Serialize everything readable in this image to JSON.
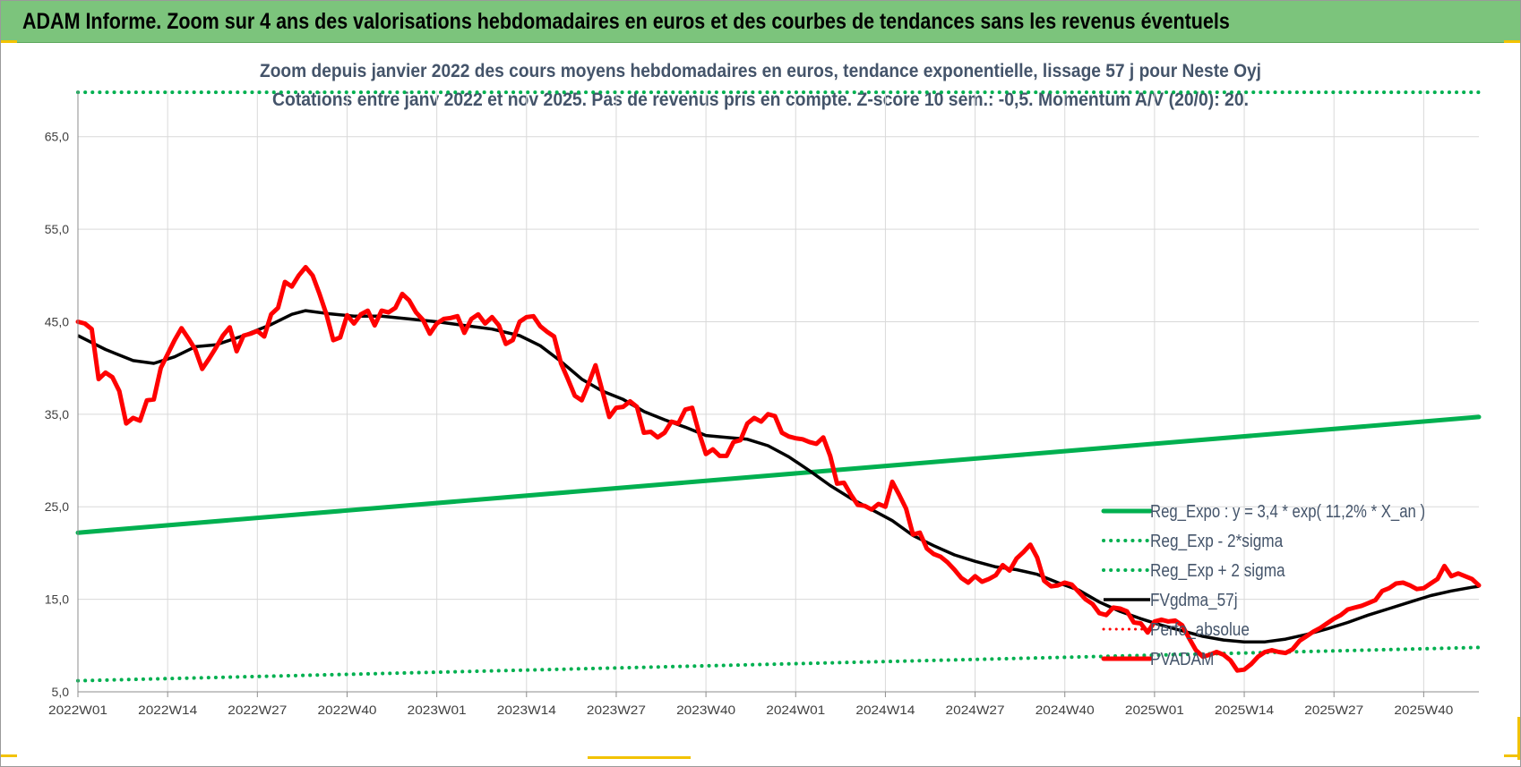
{
  "banner": {
    "title": "ADAM Informe. Zoom sur 4 ans des valorisations hebdomadaires en euros et des courbes de tendances sans les revenus éventuels"
  },
  "colors": {
    "banner_bg": "#7cc47c",
    "trend_green": "#00b050",
    "price_red": "#ff0000",
    "smooth_black": "#000000",
    "grid": "#d9d9d9",
    "axis_text": "#404040",
    "title_text": "#44546a"
  },
  "chart_data": {
    "type": "line",
    "title_line1": "Zoom depuis janvier 2022 des cours moyens hebdomadaires en euros, tendance exponentielle, lissage 57 j pour Neste Oyj",
    "title_line2": "Cotations entre janv 2022 et nov 2025. Pas de revenus pris en compte. Z-score 10 sem.: -0,5. Momentum A/V (20/0): 20.",
    "ylim": [
      5,
      70
    ],
    "y_ticks": [
      5,
      15,
      25,
      35,
      45,
      55,
      65
    ],
    "y_tick_labels": [
      "5,0",
      "15,0",
      "25,0",
      "35,0",
      "45,0",
      "55,0",
      "65,0"
    ],
    "x_count": 204,
    "x_ticks": [
      {
        "i": 0,
        "label": "2022W01"
      },
      {
        "i": 13,
        "label": "2022W14"
      },
      {
        "i": 26,
        "label": "2022W27"
      },
      {
        "i": 39,
        "label": "2022W40"
      },
      {
        "i": 52,
        "label": "2023W01"
      },
      {
        "i": 65,
        "label": "2023W14"
      },
      {
        "i": 78,
        "label": "2023W27"
      },
      {
        "i": 91,
        "label": "2023W40"
      },
      {
        "i": 104,
        "label": "2024W01"
      },
      {
        "i": 117,
        "label": "2024W14"
      },
      {
        "i": 130,
        "label": "2024W27"
      },
      {
        "i": 143,
        "label": "2024W40"
      },
      {
        "i": 156,
        "label": "2025W01"
      },
      {
        "i": 169,
        "label": "2025W14"
      },
      {
        "i": 182,
        "label": "2025W27"
      },
      {
        "i": 195,
        "label": "2025W40"
      }
    ],
    "series": [
      {
        "name": "Reg_Expo : y = 3,4 * exp( 11,2% * X_an )",
        "style": "solid-green",
        "points": [
          [
            0,
            22.2
          ],
          [
            203,
            34.7
          ]
        ]
      },
      {
        "name": "Reg_Exp - 2*sigma",
        "style": "dotted-green",
        "points": [
          [
            0,
            6.2
          ],
          [
            203,
            9.8
          ]
        ]
      },
      {
        "name": "Reg_Exp + 2 sigma",
        "style": "dotted-green",
        "points": [
          [
            0,
            69.8
          ],
          [
            203,
            69.8
          ]
        ]
      },
      {
        "name": "FVgdma_57j",
        "style": "solid-black",
        "points": [
          [
            0,
            43.5
          ],
          [
            4,
            42.0
          ],
          [
            8,
            40.8
          ],
          [
            11,
            40.5
          ],
          [
            14,
            41.2
          ],
          [
            17,
            42.3
          ],
          [
            20,
            42.5
          ],
          [
            24,
            43.5
          ],
          [
            28,
            44.7
          ],
          [
            31,
            45.8
          ],
          [
            33,
            46.2
          ],
          [
            36,
            45.9
          ],
          [
            40,
            45.6
          ],
          [
            44,
            45.6
          ],
          [
            48,
            45.3
          ],
          [
            52,
            45.0
          ],
          [
            56,
            44.6
          ],
          [
            60,
            44.2
          ],
          [
            64,
            43.5
          ],
          [
            67,
            42.4
          ],
          [
            70,
            40.7
          ],
          [
            73,
            38.8
          ],
          [
            76,
            37.5
          ],
          [
            79,
            36.6
          ],
          [
            82,
            35.3
          ],
          [
            85,
            34.4
          ],
          [
            88,
            33.6
          ],
          [
            91,
            32.7
          ],
          [
            94,
            32.5
          ],
          [
            97,
            32.3
          ],
          [
            100,
            31.6
          ],
          [
            103,
            30.4
          ],
          [
            106,
            28.9
          ],
          [
            109,
            27.3
          ],
          [
            112,
            25.9
          ],
          [
            115,
            24.7
          ],
          [
            118,
            23.5
          ],
          [
            121,
            21.9
          ],
          [
            124,
            20.8
          ],
          [
            127,
            19.8
          ],
          [
            130,
            19.1
          ],
          [
            133,
            18.5
          ],
          [
            136,
            18.2
          ],
          [
            139,
            17.7
          ],
          [
            142,
            16.8
          ],
          [
            145,
            16.0
          ],
          [
            148,
            14.7
          ],
          [
            151,
            13.7
          ],
          [
            154,
            12.9
          ],
          [
            157,
            12.2
          ],
          [
            160,
            11.6
          ],
          [
            163,
            11.0
          ],
          [
            166,
            10.6
          ],
          [
            169,
            10.4
          ],
          [
            172,
            10.4
          ],
          [
            175,
            10.7
          ],
          [
            178,
            11.2
          ],
          [
            181,
            11.8
          ],
          [
            184,
            12.5
          ],
          [
            187,
            13.3
          ],
          [
            190,
            14.0
          ],
          [
            193,
            14.7
          ],
          [
            196,
            15.4
          ],
          [
            199,
            15.9
          ],
          [
            202,
            16.3
          ],
          [
            203,
            16.4
          ]
        ]
      },
      {
        "name": "Perfo_absolue",
        "style": "dotted-red",
        "points": []
      },
      {
        "name": "PVADAM",
        "style": "thick-red",
        "points": [
          [
            0,
            45.0
          ],
          [
            1,
            44.8
          ],
          [
            2,
            44.2
          ],
          [
            3,
            38.8
          ],
          [
            4,
            39.5
          ],
          [
            5,
            39.0
          ],
          [
            6,
            37.5
          ],
          [
            7,
            34.0
          ],
          [
            8,
            34.6
          ],
          [
            9,
            34.3
          ],
          [
            10,
            36.5
          ],
          [
            11,
            36.6
          ],
          [
            12,
            40.0
          ],
          [
            13,
            41.5
          ],
          [
            14,
            43.0
          ],
          [
            15,
            44.3
          ],
          [
            16,
            43.2
          ],
          [
            17,
            42.0
          ],
          [
            18,
            39.9
          ],
          [
            19,
            41.0
          ],
          [
            20,
            42.2
          ],
          [
            21,
            43.5
          ],
          [
            22,
            44.4
          ],
          [
            23,
            41.8
          ],
          [
            24,
            43.5
          ],
          [
            25,
            43.7
          ],
          [
            26,
            44.0
          ],
          [
            27,
            43.4
          ],
          [
            28,
            45.8
          ],
          [
            29,
            46.5
          ],
          [
            30,
            49.3
          ],
          [
            31,
            48.8
          ],
          [
            32,
            50.0
          ],
          [
            33,
            50.9
          ],
          [
            34,
            50.0
          ],
          [
            35,
            48.0
          ],
          [
            36,
            45.8
          ],
          [
            37,
            43.0
          ],
          [
            38,
            43.3
          ],
          [
            39,
            45.7
          ],
          [
            40,
            44.8
          ],
          [
            41,
            45.8
          ],
          [
            42,
            46.2
          ],
          [
            43,
            44.6
          ],
          [
            44,
            46.2
          ],
          [
            45,
            46.0
          ],
          [
            46,
            46.5
          ],
          [
            47,
            48.0
          ],
          [
            48,
            47.3
          ],
          [
            49,
            46.0
          ],
          [
            50,
            45.2
          ],
          [
            51,
            43.7
          ],
          [
            52,
            44.8
          ],
          [
            53,
            45.3
          ],
          [
            54,
            45.4
          ],
          [
            55,
            45.6
          ],
          [
            56,
            43.8
          ],
          [
            57,
            45.3
          ],
          [
            58,
            45.8
          ],
          [
            59,
            44.8
          ],
          [
            60,
            45.5
          ],
          [
            61,
            44.6
          ],
          [
            62,
            42.6
          ],
          [
            63,
            43.0
          ],
          [
            64,
            45.0
          ],
          [
            65,
            45.5
          ],
          [
            66,
            45.6
          ],
          [
            67,
            44.5
          ],
          [
            68,
            43.9
          ],
          [
            69,
            43.4
          ],
          [
            70,
            40.5
          ],
          [
            71,
            38.8
          ],
          [
            72,
            37.0
          ],
          [
            73,
            36.5
          ],
          [
            74,
            38.3
          ],
          [
            75,
            40.3
          ],
          [
            76,
            37.5
          ],
          [
            77,
            34.7
          ],
          [
            78,
            35.7
          ],
          [
            79,
            35.8
          ],
          [
            80,
            36.4
          ],
          [
            81,
            35.8
          ],
          [
            82,
            33.0
          ],
          [
            83,
            33.1
          ],
          [
            84,
            32.5
          ],
          [
            85,
            33.0
          ],
          [
            86,
            34.2
          ],
          [
            87,
            34.0
          ],
          [
            88,
            35.5
          ],
          [
            89,
            35.7
          ],
          [
            90,
            33.0
          ],
          [
            91,
            30.7
          ],
          [
            92,
            31.2
          ],
          [
            93,
            30.5
          ],
          [
            94,
            30.5
          ],
          [
            95,
            32.0
          ],
          [
            96,
            32.2
          ],
          [
            97,
            34.0
          ],
          [
            98,
            34.6
          ],
          [
            99,
            34.2
          ],
          [
            100,
            35.0
          ],
          [
            101,
            34.8
          ],
          [
            102,
            33.0
          ],
          [
            103,
            32.6
          ],
          [
            104,
            32.4
          ],
          [
            105,
            32.3
          ],
          [
            106,
            32.0
          ],
          [
            107,
            31.8
          ],
          [
            108,
            32.5
          ],
          [
            109,
            30.5
          ],
          [
            110,
            27.5
          ],
          [
            111,
            27.6
          ],
          [
            112,
            26.3
          ],
          [
            113,
            25.2
          ],
          [
            114,
            25.1
          ],
          [
            115,
            24.7
          ],
          [
            116,
            25.3
          ],
          [
            117,
            25.0
          ],
          [
            118,
            27.7
          ],
          [
            119,
            26.3
          ],
          [
            120,
            24.8
          ],
          [
            121,
            22.0
          ],
          [
            122,
            22.2
          ],
          [
            123,
            20.5
          ],
          [
            124,
            19.9
          ],
          [
            125,
            19.6
          ],
          [
            126,
            19.0
          ],
          [
            127,
            18.2
          ],
          [
            128,
            17.3
          ],
          [
            129,
            16.8
          ],
          [
            130,
            17.5
          ],
          [
            131,
            16.9
          ],
          [
            132,
            17.2
          ],
          [
            133,
            17.6
          ],
          [
            134,
            18.7
          ],
          [
            135,
            18.1
          ],
          [
            136,
            19.4
          ],
          [
            137,
            20.1
          ],
          [
            138,
            20.9
          ],
          [
            139,
            19.5
          ],
          [
            140,
            17.0
          ],
          [
            141,
            16.4
          ],
          [
            142,
            16.5
          ],
          [
            143,
            16.8
          ],
          [
            144,
            16.6
          ],
          [
            145,
            15.8
          ],
          [
            146,
            15.0
          ],
          [
            147,
            14.5
          ],
          [
            148,
            13.5
          ],
          [
            149,
            13.3
          ],
          [
            150,
            14.1
          ],
          [
            151,
            14.0
          ],
          [
            152,
            13.7
          ],
          [
            153,
            12.5
          ],
          [
            154,
            12.4
          ],
          [
            155,
            11.4
          ],
          [
            156,
            12.6
          ],
          [
            157,
            12.8
          ],
          [
            158,
            12.6
          ],
          [
            159,
            12.7
          ],
          [
            160,
            12.2
          ],
          [
            161,
            10.8
          ],
          [
            162,
            9.5
          ],
          [
            163,
            8.8
          ],
          [
            164,
            9.0
          ],
          [
            165,
            9.3
          ],
          [
            166,
            9.0
          ],
          [
            167,
            8.4
          ],
          [
            168,
            7.3
          ],
          [
            169,
            7.4
          ],
          [
            170,
            8.0
          ],
          [
            171,
            8.8
          ],
          [
            172,
            9.3
          ],
          [
            173,
            9.5
          ],
          [
            174,
            9.3
          ],
          [
            175,
            9.2
          ],
          [
            176,
            9.6
          ],
          [
            177,
            10.5
          ],
          [
            178,
            11.0
          ],
          [
            179,
            11.5
          ],
          [
            180,
            11.9
          ],
          [
            181,
            12.4
          ],
          [
            182,
            12.9
          ],
          [
            183,
            13.3
          ],
          [
            184,
            13.9
          ],
          [
            185,
            14.1
          ],
          [
            186,
            14.3
          ],
          [
            187,
            14.6
          ],
          [
            188,
            14.9
          ],
          [
            189,
            15.9
          ],
          [
            190,
            16.2
          ],
          [
            191,
            16.7
          ],
          [
            192,
            16.8
          ],
          [
            193,
            16.5
          ],
          [
            194,
            16.1
          ],
          [
            195,
            16.2
          ],
          [
            196,
            16.7
          ],
          [
            197,
            17.2
          ],
          [
            198,
            18.6
          ],
          [
            199,
            17.5
          ],
          [
            200,
            17.8
          ],
          [
            201,
            17.5
          ],
          [
            202,
            17.2
          ],
          [
            203,
            16.5
          ]
        ]
      }
    ]
  }
}
